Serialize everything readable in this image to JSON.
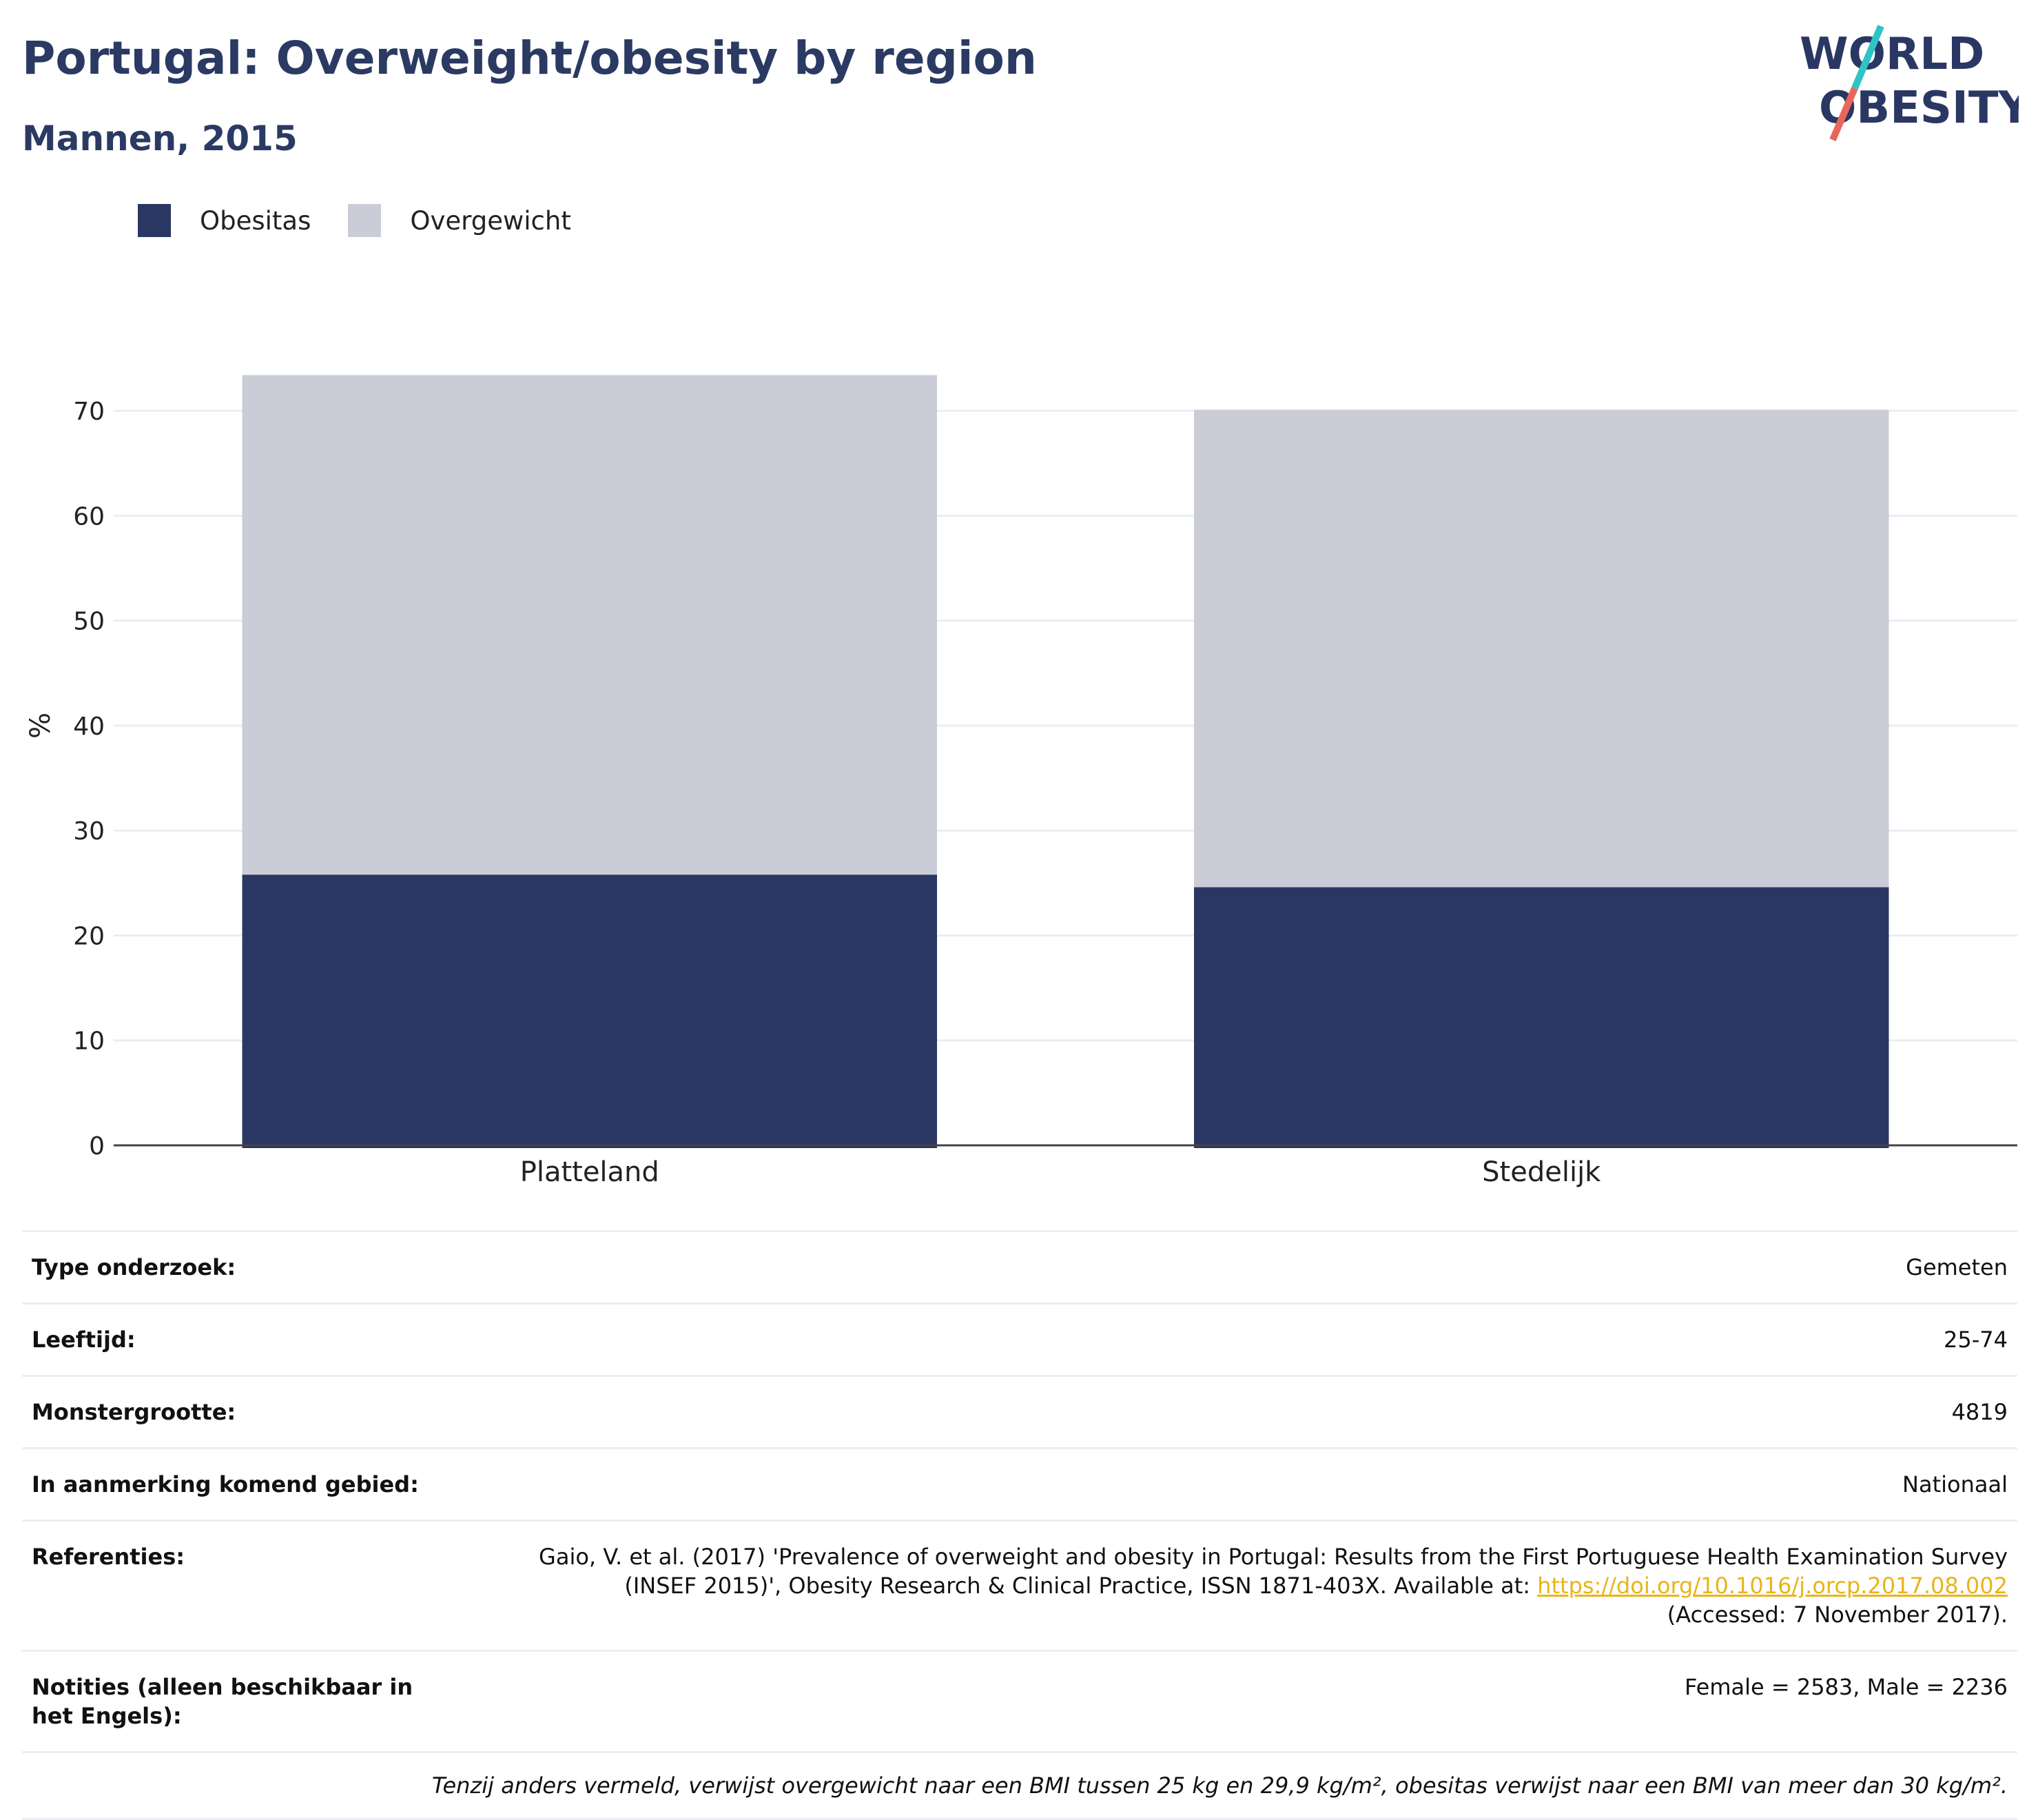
{
  "header": {
    "title": "Portugal: Overweight/obesity by region",
    "subtitle": "Mannen, 2015"
  },
  "logo": {
    "line1": "WORLD",
    "line2": "OBESITY",
    "accent_colors": [
      "#2ec4c6",
      "#e8675a"
    ]
  },
  "legend": [
    {
      "label": "Obesitas",
      "color": "#2b3763"
    },
    {
      "label": "Overgewicht",
      "color": "#cacdd8"
    }
  ],
  "chart_data": {
    "type": "bar",
    "stacked": true,
    "categories": [
      "Platteland",
      "Stedelijk"
    ],
    "series": [
      {
        "name": "Obesitas",
        "color": "#2b3763",
        "values": [
          25.8,
          24.6
        ]
      },
      {
        "name": "Overgewicht",
        "color": "#cacdd8",
        "values": [
          47.6,
          45.5
        ]
      }
    ],
    "ylabel": "%",
    "ylim": [
      0,
      75
    ],
    "yticks": [
      0,
      10,
      20,
      30,
      40,
      50,
      60,
      70
    ],
    "grid": true,
    "legend_position": "top-left"
  },
  "meta": {
    "rows": [
      {
        "label": "Type onderzoek:",
        "value": "Gemeten"
      },
      {
        "label": "Leeftijd:",
        "value": "25-74"
      },
      {
        "label": "Monstergrootte:",
        "value": "4819"
      },
      {
        "label": "In aanmerking komend gebied:",
        "value": "Nationaal"
      }
    ],
    "references": {
      "label": "Referenties:",
      "text_line1": "Gaio, V. et al. (2017) 'Prevalence of overweight and obesity in Portugal: Results from the First Portuguese Health Examination Survey",
      "text_line2": "(INSEF 2015)', Obesity Research & Clinical Practice, ISSN 1871-403X. Available at: ",
      "link": "https://doi.org/10.1016/j.orcp.2017.08.002",
      "text_line3": "(Accessed: 7 November 2017)."
    },
    "notes": {
      "label": "Notities (alleen beschikbaar in het Engels):",
      "value": "Female = 2583, Male = 2236"
    },
    "footnote": "Tenzij anders vermeld, verwijst overgewicht naar een BMI tussen 25 kg en 29,9 kg/m², obesitas verwijst naar een BMI van meer dan 30 kg/m²."
  }
}
